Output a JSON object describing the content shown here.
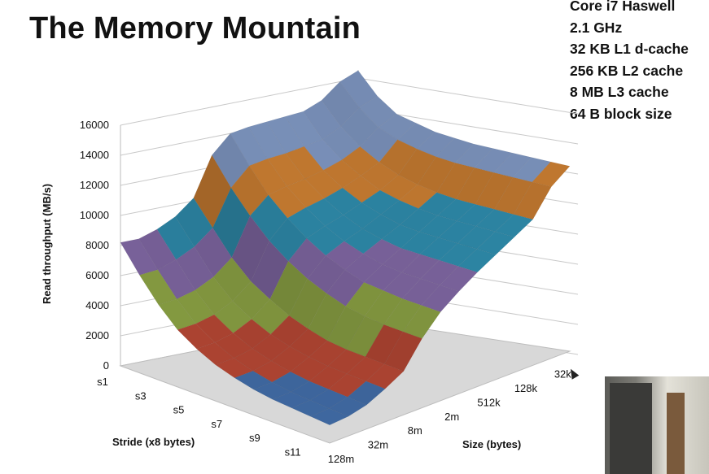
{
  "title": "The Memory Mountain",
  "specs": [
    "Core i7 Haswell",
    "2.1 GHz",
    "32 KB L1 d-cache",
    "256 KB L2 cache",
    "8 MB L3 cache",
    "64 B block size"
  ],
  "chart_data": {
    "type": "surface",
    "ylabel": "Read throughput (MB/s)",
    "zlim": [
      0,
      16000
    ],
    "z_ticks": [
      "0",
      "2000",
      "4000",
      "6000",
      "8000",
      "10000",
      "12000",
      "14000",
      "16000"
    ],
    "stride_label": "Stride (x8 bytes)",
    "stride_ticks": [
      "s1",
      "s3",
      "s5",
      "s7",
      "s9",
      "s11"
    ],
    "size_label": "Size (bytes)",
    "size_ticks": [
      "128m",
      "32m",
      "8m",
      "2m",
      "512k",
      "128k",
      "32k"
    ],
    "strides": [
      "s1",
      "s2",
      "s3",
      "s4",
      "s5",
      "s6",
      "s7",
      "s8",
      "s9",
      "s10",
      "s11",
      "s12"
    ],
    "sizes": [
      "128m",
      "64m",
      "32m",
      "16m",
      "8m",
      "4m",
      "2m",
      "1024k",
      "512k",
      "256k",
      "128k",
      "64k",
      "32k",
      "16k"
    ],
    "values": [
      [
        8200,
        8200,
        8600,
        9200,
        10200,
        12800,
        14000,
        14200,
        14300,
        14400,
        14500,
        15000,
        16000,
        16500
      ],
      [
        6500,
        6600,
        7000,
        7600,
        8600,
        11000,
        12200,
        12400,
        12500,
        12700,
        12900,
        13500,
        14500,
        15000
      ],
      [
        5000,
        5100,
        5400,
        6000,
        7000,
        9500,
        10600,
        10900,
        11100,
        11400,
        11800,
        12400,
        13400,
        14000
      ],
      [
        3800,
        3900,
        4200,
        4800,
        5800,
        8200,
        9400,
        9800,
        10100,
        10500,
        11000,
        11600,
        12800,
        13600
      ],
      [
        3000,
        3100,
        3400,
        4000,
        5000,
        7200,
        8400,
        8900,
        9300,
        9800,
        10300,
        11000,
        12400,
        13200
      ],
      [
        2400,
        2500,
        2800,
        3400,
        4300,
        6400,
        7600,
        8200,
        8700,
        9300,
        9900,
        10600,
        12100,
        13000
      ],
      [
        2000,
        2100,
        2400,
        3000,
        3800,
        5800,
        7000,
        7700,
        8300,
        8900,
        9600,
        10300,
        11900,
        12800
      ],
      [
        1700,
        1800,
        2100,
        2700,
        3400,
        5300,
        6500,
        7300,
        8000,
        8700,
        9400,
        10100,
        11800,
        12700
      ],
      [
        1500,
        1600,
        1900,
        2500,
        3200,
        5000,
        6300,
        7100,
        7900,
        8600,
        9300,
        10000,
        11700,
        12600
      ],
      [
        1400,
        1500,
        1800,
        2400,
        3100,
        4800,
        6100,
        7000,
        7800,
        8500,
        9200,
        9900,
        11600,
        12500
      ],
      [
        1300,
        1400,
        1700,
        2300,
        3000,
        4700,
        6000,
        6900,
        7700,
        8400,
        9100,
        9800,
        11500,
        12400
      ],
      [
        1200,
        1300,
        1600,
        2200,
        2900,
        4600,
        5900,
        6800,
        7600,
        8300,
        9000,
        9700,
        11400,
        12300
      ]
    ],
    "color_bands": [
      "#4d7fc4",
      "#d9553e",
      "#a8c352",
      "#9a7cc4",
      "#38a8cf",
      "#f79a3d",
      "#9bb8ec"
    ],
    "band_step": 2000,
    "floor_color": "#d8d8d8"
  }
}
